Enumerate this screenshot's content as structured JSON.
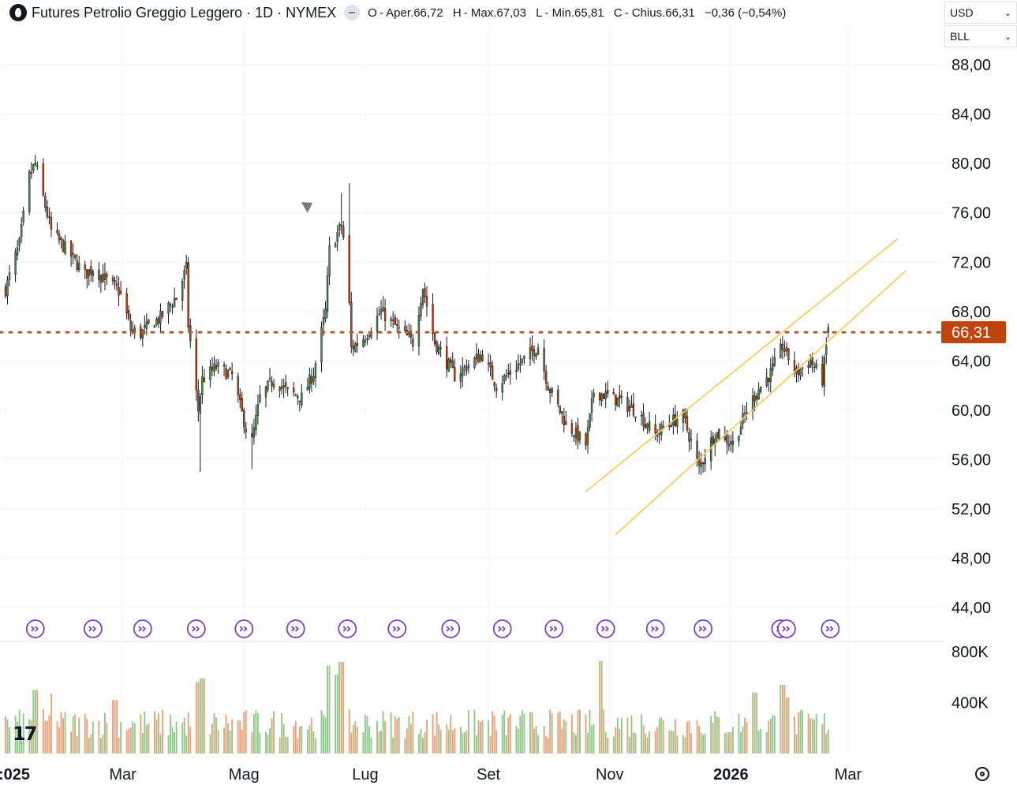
{
  "header": {
    "title": "Futures Petrolio Greggio Leggero · 1D · NYMEX",
    "ohlc": [
      {
        "key": "O",
        "text": "- Aper.66,72"
      },
      {
        "key": "H",
        "text": "- Max.67,03"
      },
      {
        "key": "L",
        "text": "- Min.65,81"
      },
      {
        "key": "C",
        "text": "- Chius.66,31"
      },
      {
        "key": "",
        "text": "−0,36 (−0,54%)"
      }
    ],
    "currency": "USD",
    "unit": "BLL",
    "logo_text": "17"
  },
  "chart_data": {
    "type": "candlestick",
    "symbol": "Futures Petrolio Greggio Leggero",
    "interval": "1D",
    "exchange": "NYMEX",
    "last_price": 66.31,
    "last_price_label": "66,31",
    "price_axis": {
      "range": [
        40.6,
        90.7
      ],
      "ticks": [
        88,
        84,
        80,
        76,
        72,
        68,
        64,
        60,
        56,
        52,
        48,
        44
      ],
      "tick_labels": [
        "88,00",
        "84,00",
        "80,00",
        "76,00",
        "72,00",
        "68,00",
        "64,00",
        "60,00",
        "56,00",
        "52,00",
        "48,00",
        "44,00"
      ]
    },
    "volume_axis": {
      "ticks": [
        800000,
        400000
      ],
      "tick_labels": [
        "800K",
        "400K"
      ]
    },
    "time_axis": {
      "start": "2025-01-01",
      "end": "2026-03-10",
      "labels": [
        {
          "date": "2025-01-01",
          "text": ":025",
          "bold": true
        },
        {
          "date": "2025-03-01",
          "text": "Mar",
          "bold": false
        },
        {
          "date": "2025-05-01",
          "text": "Mag",
          "bold": false
        },
        {
          "date": "2025-07-01",
          "text": "Lug",
          "bold": false
        },
        {
          "date": "2025-09-01",
          "text": "Set",
          "bold": false
        },
        {
          "date": "2025-11-01",
          "text": "Nov",
          "bold": false
        },
        {
          "date": "2026-01-01",
          "text": "2026",
          "bold": true
        },
        {
          "date": "2026-03-01",
          "text": "Mar",
          "bold": false
        }
      ]
    },
    "path": [
      [
        "2025-01-01",
        69.8
      ],
      [
        "2025-01-08",
        73.5
      ],
      [
        "2025-01-13",
        79.0
      ],
      [
        "2025-01-16",
        80.0
      ],
      [
        "2025-01-24",
        74.5
      ],
      [
        "2025-02-03",
        72.5
      ],
      [
        "2025-02-10",
        71.0
      ],
      [
        "2025-02-14",
        71.5
      ],
      [
        "2025-02-21",
        70.5
      ],
      [
        "2025-02-28",
        69.5
      ],
      [
        "2025-03-05",
        66.5
      ],
      [
        "2025-03-10",
        66.2
      ],
      [
        "2025-03-14",
        66.8
      ],
      [
        "2025-03-20",
        67.5
      ],
      [
        "2025-03-28",
        69.2
      ],
      [
        "2025-04-02",
        71.5
      ],
      [
        "2025-04-03",
        66.9
      ],
      [
        "2025-04-08",
        60.0
      ],
      [
        "2025-04-10",
        62.5
      ],
      [
        "2025-04-17",
        63.5
      ],
      [
        "2025-04-25",
        62.8
      ],
      [
        "2025-05-02",
        58.5
      ],
      [
        "2025-05-05",
        57.5
      ],
      [
        "2025-05-09",
        61.0
      ],
      [
        "2025-05-16",
        62.5
      ],
      [
        "2025-05-23",
        61.5
      ],
      [
        "2025-05-30",
        61.0
      ],
      [
        "2025-06-05",
        63.0
      ],
      [
        "2025-06-11",
        68.0
      ],
      [
        "2025-06-13",
        73.0
      ],
      [
        "2025-06-19",
        75.0
      ],
      [
        "2025-06-20",
        74.0
      ],
      [
        "2025-06-23",
        68.5
      ],
      [
        "2025-06-24",
        65.0
      ],
      [
        "2025-07-01",
        66.0
      ],
      [
        "2025-07-09",
        68.0
      ],
      [
        "2025-07-18",
        66.5
      ],
      [
        "2025-07-25",
        65.5
      ],
      [
        "2025-07-30",
        70.0
      ],
      [
        "2025-08-05",
        65.5
      ],
      [
        "2025-08-15",
        62.8
      ],
      [
        "2025-08-22",
        63.7
      ],
      [
        "2025-08-29",
        64.5
      ],
      [
        "2025-09-05",
        62.0
      ],
      [
        "2025-09-15",
        63.5
      ],
      [
        "2025-09-26",
        65.2
      ],
      [
        "2025-10-01",
        62.0
      ],
      [
        "2025-10-10",
        58.9
      ],
      [
        "2025-10-20",
        57.2
      ],
      [
        "2025-10-24",
        61.5
      ],
      [
        "2025-11-03",
        61.0
      ],
      [
        "2025-11-14",
        60.0
      ],
      [
        "2025-11-24",
        58.0
      ],
      [
        "2025-12-01",
        59.0
      ],
      [
        "2025-12-08",
        59.5
      ],
      [
        "2025-12-16",
        55.3
      ],
      [
        "2025-12-24",
        58.2
      ],
      [
        "2026-01-02",
        57.3
      ],
      [
        "2026-01-09",
        60.0
      ],
      [
        "2026-01-14",
        61.5
      ],
      [
        "2026-01-21",
        63.0
      ],
      [
        "2026-01-27",
        65.2
      ],
      [
        "2026-02-03",
        63.0
      ],
      [
        "2026-02-10",
        64.0
      ],
      [
        "2026-02-16",
        62.5
      ],
      [
        "2026-02-19",
        66.3
      ]
    ],
    "annotations": {
      "channel_upper": [
        [
          "2025-10-20",
          53.4
        ],
        [
          "2026-03-26",
          73.9
        ]
      ],
      "channel_lower": [
        [
          "2025-11-04",
          49.9
        ],
        [
          "2026-03-30",
          71.3
        ]
      ],
      "channel_color": "#f7c948",
      "horizontal_line": {
        "value": 66.31,
        "style": "dotted",
        "color": "#b55a2a"
      }
    },
    "event_markers": [
      "2025-01-16",
      "2025-02-14",
      "2025-03-11",
      "2025-04-07",
      "2025-05-01",
      "2025-05-27",
      "2025-06-22",
      "2025-07-17",
      "2025-08-13",
      "2025-09-08",
      "2025-10-04",
      "2025-10-30",
      "2025-11-24",
      "2025-12-18",
      "2026-01-26",
      "2026-01-29",
      "2026-02-20"
    ],
    "volume_profile": {
      "max_volume": 900000,
      "spikes": [
        [
          "2025-01-16",
          500000
        ],
        [
          "2025-01-25",
          470000
        ],
        [
          "2025-02-25",
          420000
        ],
        [
          "2025-04-08",
          560000
        ],
        [
          "2025-04-10",
          590000
        ],
        [
          "2025-06-13",
          690000
        ],
        [
          "2025-06-16",
          620000
        ],
        [
          "2025-06-19",
          720000
        ],
        [
          "2025-10-27",
          730000
        ],
        [
          "2026-01-27",
          540000
        ],
        [
          "2026-01-13",
          480000
        ],
        [
          "2026-01-30",
          440000
        ]
      ]
    },
    "colors": {
      "up": "#4a8c45",
      "down": "#c1440e",
      "wick": "#131722",
      "vol_up": "#8fc88a",
      "vol_down": "#e8a27a",
      "marker": "#7b3fc4",
      "price_label_bg": "#c1440e"
    },
    "grid": true
  }
}
